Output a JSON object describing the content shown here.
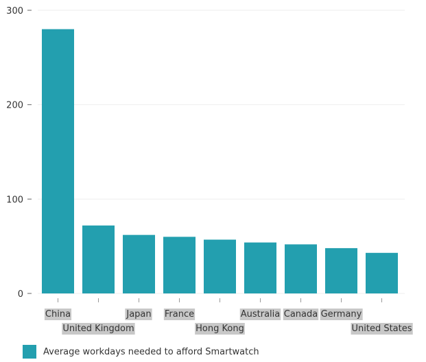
{
  "chart_data": {
    "type": "bar",
    "categories": [
      "China",
      "United Kingdom",
      "Japan",
      "France",
      "Hong Kong",
      "Australia",
      "Canada",
      "Germany",
      "United States"
    ],
    "series": [
      {
        "name": "Average workdays needed to afford Smartwatch",
        "values": [
          280,
          72,
          62,
          60,
          57,
          54,
          52,
          48,
          43
        ]
      }
    ],
    "ylim": [
      0,
      300
    ],
    "yticks": [
      0,
      100,
      200,
      300
    ],
    "grid": true,
    "legend_position": "bottom-left",
    "colors": {
      "bar": "#239faf",
      "label_background": "#c8c8c8",
      "grid": "#eeeeee"
    }
  }
}
